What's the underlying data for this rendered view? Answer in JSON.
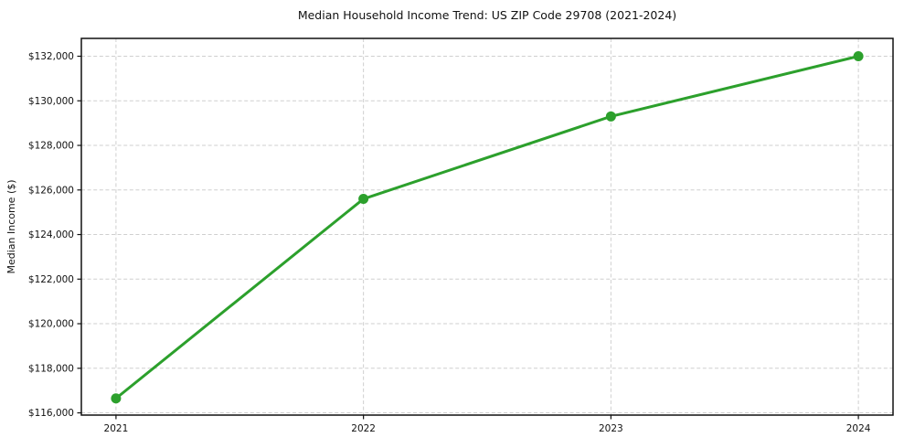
{
  "chart_data": {
    "type": "line",
    "title": "Median Household Income Trend: US ZIP Code 29708 (2021-2024)",
    "xlabel": "",
    "ylabel": "Median Income ($)",
    "x": [
      2021,
      2022,
      2023,
      2024
    ],
    "categories": [
      "2021",
      "2022",
      "2023",
      "2024"
    ],
    "series": [
      {
        "name": "Median Household Income",
        "values": [
          116650,
          125600,
          129300,
          132000
        ]
      }
    ],
    "x_tick_labels": [
      "2021",
      "2022",
      "2023",
      "2024"
    ],
    "y_ticks": [
      116000,
      118000,
      120000,
      122000,
      124000,
      126000,
      128000,
      130000,
      132000
    ],
    "y_tick_labels": [
      "$116,000",
      "$118,000",
      "$120,000",
      "$122,000",
      "$124,000",
      "$126,000",
      "$128,000",
      "$130,000",
      "$132,000"
    ],
    "xlim": [
      2020.86,
      2024.14
    ],
    "ylim": [
      115900,
      132800
    ],
    "grid": true,
    "grid_style": "dashed",
    "legend": false,
    "line_color": "#2ca02c",
    "marker": "circle",
    "marker_color": "#2ca02c",
    "marker_radius": 5.5,
    "line_width": 3,
    "axis_color": "#111111",
    "grid_color": "#cfcfcf",
    "text_color": "#111111",
    "background_color": "#ffffff"
  }
}
